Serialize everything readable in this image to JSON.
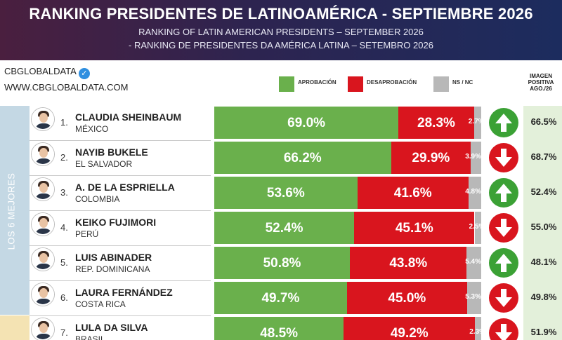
{
  "header": {
    "title": "RANKING PRESIDENTES DE LATINOAMÉRICA - SEPTIEMBRE 2026",
    "subtitle_en": "RANKING OF LATIN AMERICAN PRESIDENTS – SEPTEMBER 2026",
    "subtitle_pt": "- RANKING DE PRESIDENTES DA AMÉRICA LATINA – SETEMBRO 2026"
  },
  "brand": {
    "name": "CBGLOBALDATA",
    "website": "WWW.CBGLOBALDATA.COM",
    "verified_icon": "check-badge-icon"
  },
  "legend": [
    {
      "label": "APROBACIÓN",
      "color": "#6ab04c"
    },
    {
      "label": "DESAPROBACIÓN",
      "color": "#d9151e"
    },
    {
      "label": "NS / NC",
      "color": "#b8b8b8"
    }
  ],
  "image_column_header": {
    "line1": "IMAGEN",
    "line2": "POSITIVA",
    "line3": "AGO./26"
  },
  "group_labels": {
    "top": "LOS 6 MEJORES"
  },
  "colors": {
    "approval": "#6ab04c",
    "disapproval": "#d9151e",
    "unknown": "#b8b8b8",
    "up": "#3ba135",
    "down": "#d9151e"
  },
  "chart_data": {
    "type": "bar",
    "stacked": true,
    "orientation": "horizontal",
    "categories": [
      "CLAUDIA SHEINBAUM",
      "NAYIB BUKELE",
      "A. DE LA ESPRIELLA",
      "KEIKO FUJIMORI",
      "LUIS ABINADER",
      "LAURA FERNÁNDEZ",
      "LULA DA SILVA"
    ],
    "series": [
      {
        "name": "APROBACIÓN",
        "values": [
          69.0,
          66.2,
          53.6,
          52.4,
          50.8,
          49.7,
          48.5
        ]
      },
      {
        "name": "DESAPROBACIÓN",
        "values": [
          28.3,
          29.9,
          41.6,
          45.1,
          43.8,
          45.0,
          49.2
        ]
      },
      {
        "name": "NS / NC",
        "values": [
          2.7,
          3.9,
          4.8,
          2.5,
          5.4,
          5.3,
          2.3
        ]
      }
    ],
    "rows": [
      {
        "rank": "1.",
        "name": "CLAUDIA SHEINBAUM",
        "country": "MÉXICO",
        "approval": 69.0,
        "disapproval": 28.3,
        "nsnc": 2.7,
        "approval_label": "69.0%",
        "disapproval_label": "28.3%",
        "nsnc_label": "2.7%",
        "trend": "up",
        "trend_icon": "arrow-up-icon",
        "image_prev": "66.5%"
      },
      {
        "rank": "2.",
        "name": "NAYIB BUKELE",
        "country": "EL SALVADOR",
        "approval": 66.2,
        "disapproval": 29.9,
        "nsnc": 3.9,
        "approval_label": "66.2%",
        "disapproval_label": "29.9%",
        "nsnc_label": "3.9%",
        "trend": "down",
        "trend_icon": "arrow-down-icon",
        "image_prev": "68.7%"
      },
      {
        "rank": "3.",
        "name": "A. DE LA ESPRIELLA",
        "country": "COLOMBIA",
        "approval": 53.6,
        "disapproval": 41.6,
        "nsnc": 4.8,
        "approval_label": "53.6%",
        "disapproval_label": "41.6%",
        "nsnc_label": "4.8%",
        "trend": "up",
        "trend_icon": "arrow-up-icon",
        "image_prev": "52.4%"
      },
      {
        "rank": "4.",
        "name": "KEIKO FUJIMORI",
        "country": "PERÚ",
        "approval": 52.4,
        "disapproval": 45.1,
        "nsnc": 2.5,
        "approval_label": "52.4%",
        "disapproval_label": "45.1%",
        "nsnc_label": "2.5%",
        "trend": "down",
        "trend_icon": "arrow-down-icon",
        "image_prev": "55.0%"
      },
      {
        "rank": "5.",
        "name": "LUIS ABINADER",
        "country": "REP. DOMINICANA",
        "approval": 50.8,
        "disapproval": 43.8,
        "nsnc": 5.4,
        "approval_label": "50.8%",
        "disapproval_label": "43.8%",
        "nsnc_label": "5.4%",
        "trend": "up",
        "trend_icon": "arrow-up-icon",
        "image_prev": "48.1%"
      },
      {
        "rank": "6.",
        "name": "LAURA FERNÁNDEZ",
        "country": "COSTA RICA",
        "approval": 49.7,
        "disapproval": 45.0,
        "nsnc": 5.3,
        "approval_label": "49.7%",
        "disapproval_label": "45.0%",
        "nsnc_label": "5.3%",
        "trend": "down",
        "trend_icon": "arrow-down-icon",
        "image_prev": "49.8%"
      },
      {
        "rank": "7.",
        "name": "LULA DA SILVA",
        "country": "BRASIL",
        "approval": 48.5,
        "disapproval": 49.2,
        "nsnc": 2.3,
        "approval_label": "48.5%",
        "disapproval_label": "49.2%",
        "nsnc_label": "2.3%",
        "trend": "down",
        "trend_icon": "arrow-down-icon",
        "image_prev": "51.9%"
      }
    ]
  }
}
